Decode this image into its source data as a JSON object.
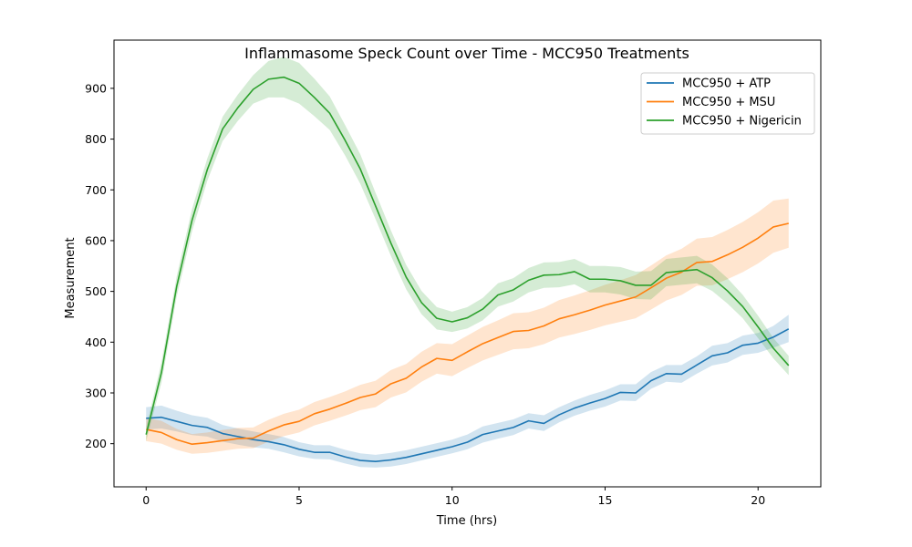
{
  "chart_data": {
    "type": "line",
    "title": "Inflammasome Speck Count over Time - MCC950 Treatments",
    "xlabel": "Time (hrs)",
    "ylabel": "Measurement",
    "xlim": [
      -1.05,
      22.05
    ],
    "ylim": [
      115,
      995
    ],
    "xticks": [
      0,
      5,
      10,
      15,
      20
    ],
    "yticks": [
      200,
      300,
      400,
      500,
      600,
      700,
      800,
      900
    ],
    "grid": false,
    "legend_position": "top-right",
    "x": [
      0,
      0.5,
      1,
      1.5,
      2,
      2.5,
      3,
      3.5,
      4,
      4.5,
      5,
      5.5,
      6,
      6.5,
      7,
      7.5,
      8,
      8.5,
      9,
      9.5,
      10,
      10.5,
      11,
      11.5,
      12,
      12.5,
      13,
      13.5,
      14,
      14.5,
      15,
      15.5,
      16,
      16.5,
      17,
      17.5,
      18,
      18.5,
      19,
      19.5,
      20,
      20.5,
      21
    ],
    "series": [
      {
        "name": "MCC950 + ATP",
        "color": "#1f77b4",
        "values": [
          250,
          252,
          244,
          236,
          232,
          220,
          214,
          208,
          204,
          198,
          189,
          183,
          183,
          174,
          167,
          165,
          168,
          173,
          180,
          187,
          194,
          203,
          218,
          225,
          232,
          245,
          240,
          257,
          270,
          280,
          289,
          301,
          300,
          324,
          338,
          337,
          355,
          373,
          379,
          394,
          398,
          410,
          426
        ],
        "lower": [
          228,
          230,
          224,
          217,
          214,
          204,
          198,
          193,
          190,
          183,
          175,
          170,
          169,
          161,
          154,
          153,
          155,
          160,
          167,
          174,
          181,
          189,
          202,
          210,
          217,
          230,
          225,
          242,
          255,
          265,
          273,
          285,
          284,
          308,
          322,
          320,
          338,
          354,
          360,
          375,
          379,
          389,
          400
        ],
        "upper": [
          272,
          275,
          265,
          256,
          251,
          237,
          230,
          224,
          219,
          213,
          203,
          197,
          197,
          188,
          181,
          178,
          182,
          187,
          194,
          201,
          208,
          218,
          234,
          241,
          248,
          260,
          256,
          272,
          285,
          296,
          305,
          317,
          317,
          341,
          355,
          355,
          372,
          393,
          398,
          413,
          418,
          432,
          454
        ]
      },
      {
        "name": "MCC950 + MSU",
        "color": "#ff7f0e",
        "values": [
          228,
          222,
          208,
          199,
          202,
          206,
          210,
          211,
          225,
          237,
          244,
          259,
          268,
          279,
          291,
          298,
          318,
          329,
          351,
          368,
          364,
          381,
          397,
          409,
          421,
          423,
          432,
          446,
          454,
          463,
          473,
          481,
          489,
          507,
          526,
          538,
          557,
          559,
          572,
          587,
          605,
          627,
          634
        ],
        "lower": [
          205,
          200,
          188,
          180,
          182,
          186,
          190,
          191,
          204,
          215,
          222,
          236,
          245,
          255,
          266,
          272,
          291,
          301,
          322,
          338,
          333,
          349,
          364,
          375,
          386,
          388,
          396,
          409,
          416,
          424,
          433,
          440,
          447,
          464,
          482,
          493,
          511,
          512,
          524,
          538,
          555,
          576,
          586
        ],
        "upper": [
          251,
          245,
          229,
          219,
          222,
          227,
          231,
          232,
          247,
          259,
          267,
          282,
          292,
          303,
          316,
          324,
          345,
          357,
          381,
          398,
          396,
          413,
          430,
          443,
          457,
          459,
          468,
          483,
          492,
          502,
          513,
          522,
          532,
          551,
          571,
          584,
          604,
          607,
          621,
          637,
          656,
          679,
          683
        ]
      },
      {
        "name": "MCC950 + Nigericin",
        "color": "#2ca02c",
        "values": [
          218,
          340,
          510,
          640,
          740,
          820,
          862,
          898,
          918,
          922,
          910,
          882,
          851,
          798,
          741,
          668,
          595,
          528,
          478,
          447,
          440,
          448,
          465,
          493,
          503,
          522,
          532,
          533,
          539,
          524,
          524,
          521,
          512,
          512,
          537,
          540,
          543,
          527,
          501,
          470,
          430,
          388,
          354
        ],
        "lower": [
          205,
          320,
          490,
          618,
          718,
          796,
          836,
          870,
          882,
          882,
          870,
          845,
          818,
          768,
          712,
          642,
          570,
          504,
          455,
          425,
          420,
          427,
          443,
          470,
          480,
          498,
          507,
          508,
          514,
          498,
          498,
          494,
          485,
          484,
          510,
          513,
          516,
          501,
          476,
          447,
          408,
          368,
          335
        ],
        "upper": [
          231,
          360,
          530,
          662,
          762,
          844,
          888,
          926,
          954,
          962,
          950,
          919,
          884,
          828,
          770,
          694,
          620,
          552,
          501,
          469,
          460,
          469,
          487,
          516,
          526,
          546,
          557,
          558,
          564,
          550,
          550,
          548,
          539,
          540,
          564,
          567,
          570,
          553,
          526,
          493,
          452,
          408,
          373
        ]
      }
    ]
  }
}
